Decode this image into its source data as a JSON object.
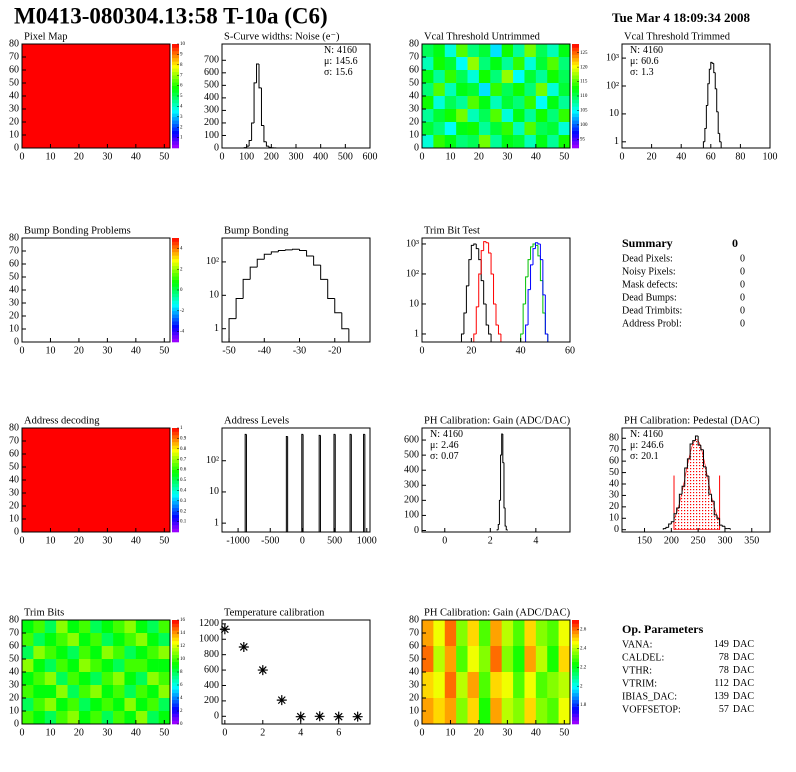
{
  "header": {
    "title": "M0413-080304.13:58 T-10a (C6)",
    "date": "Tue Mar 4 18:09:34 2008"
  },
  "chart_data": [
    {
      "type": "heatmap",
      "title": "Pixel Map",
      "xlim": [
        0,
        52
      ],
      "ylim": [
        0,
        80
      ],
      "xticks": [
        0,
        10,
        20,
        30,
        40,
        50
      ],
      "yticks": [
        0,
        10,
        20,
        30,
        40,
        50,
        60,
        70,
        80
      ],
      "zlim": [
        0,
        10
      ],
      "zticks": [
        1,
        2,
        3,
        4,
        5,
        6,
        7,
        8,
        9,
        10
      ],
      "z": [
        [
          10
        ]
      ]
    },
    {
      "type": "histogram",
      "title": "S-Curve widths: Noise (e⁻)",
      "xlim": [
        0,
        600
      ],
      "ylim": [
        0,
        830
      ],
      "xticks": [
        0,
        100,
        200,
        300,
        400,
        500,
        600
      ],
      "yticks": [
        0,
        100,
        200,
        300,
        400,
        500,
        600,
        700
      ],
      "color": "#000000",
      "bins": [
        90,
        100,
        110,
        120,
        130,
        140,
        150,
        160,
        170,
        180,
        190,
        200,
        210,
        220
      ],
      "values": [
        3,
        15,
        60,
        200,
        520,
        670,
        480,
        180,
        50,
        15,
        5,
        2,
        1
      ],
      "stats": [
        {
          "name": "N:",
          "value": 4160
        },
        {
          "name": "μ:",
          "value": 145.6
        },
        {
          "name": "σ:",
          "value": 15.6
        }
      ],
      "stats_corner": "upper right"
    },
    {
      "type": "heatmap",
      "title": "Vcal Threshold Untrimmed",
      "xlim": [
        0,
        52
      ],
      "ylim": [
        0,
        80
      ],
      "xticks": [
        0,
        10,
        20,
        30,
        40,
        50
      ],
      "yticks": [
        0,
        10,
        20,
        30,
        40,
        50,
        60,
        70,
        80
      ],
      "zlim": [
        92,
        128
      ],
      "zticks": [
        95,
        100,
        105,
        110,
        115,
        120,
        125
      ],
      "z": [
        [
          110,
          112,
          106,
          115,
          109,
          111,
          104,
          113,
          108,
          116,
          110,
          107,
          112
        ],
        [
          107,
          113,
          111,
          105,
          117,
          109,
          112,
          108,
          114,
          106,
          111,
          115,
          109
        ],
        [
          112,
          108,
          114,
          110,
          106,
          113,
          109,
          117,
          105,
          111,
          108,
          113,
          110
        ],
        [
          109,
          115,
          107,
          112,
          111,
          104,
          114,
          110,
          113,
          109,
          116,
          106,
          111
        ],
        [
          113,
          106,
          110,
          108,
          115,
          112,
          107,
          111,
          109,
          114,
          105,
          112,
          108
        ],
        [
          108,
          111,
          113,
          116,
          107,
          110,
          115,
          106,
          112,
          108,
          113,
          109,
          114
        ],
        [
          111,
          109,
          105,
          112,
          113,
          108,
          111,
          114,
          107,
          115,
          110,
          111,
          106
        ],
        [
          106,
          114,
          112,
          109,
          110,
          116,
          108,
          112,
          111,
          107,
          112,
          108,
          113
        ]
      ]
    },
    {
      "type": "histogram",
      "title": "Vcal Threshold Trimmed",
      "log_y": true,
      "xlim": [
        0,
        100
      ],
      "ylim": [
        0.6,
        3200
      ],
      "xticks": [
        0,
        20,
        40,
        60,
        80,
        100
      ],
      "yticks": [
        1,
        10,
        {
          "value": 100,
          "label": "10²"
        },
        {
          "value": 1000,
          "label": "10³"
        }
      ],
      "color": "#000000",
      "bins": [
        55,
        56,
        57,
        58,
        59,
        60,
        61,
        62,
        63,
        64,
        65,
        66,
        67
      ],
      "values": [
        1,
        3,
        20,
        120,
        400,
        700,
        650,
        300,
        80,
        12,
        2,
        1
      ],
      "stats": [
        {
          "name": "N:",
          "value": 4160
        },
        {
          "name": "μ:",
          "value": 60.6
        },
        {
          "name": "σ:",
          "value": 1.3
        }
      ],
      "stats_corner": "upper left"
    },
    {
      "type": "heatmap",
      "title": "Bump Bonding Problems",
      "xlim": [
        0,
        52
      ],
      "ylim": [
        0,
        80
      ],
      "xticks": [
        0,
        10,
        20,
        30,
        40,
        50
      ],
      "yticks": [
        0,
        10,
        20,
        30,
        40,
        50,
        60,
        70,
        80
      ],
      "zlim": [
        -5,
        5
      ],
      "zticks": [
        -4,
        -2,
        0,
        2,
        4
      ]
    },
    {
      "type": "histogram",
      "title": "Bump Bonding",
      "log_y": true,
      "xlim": [
        -52,
        -10
      ],
      "ylim": [
        0.4,
        520
      ],
      "xticks": [
        -50,
        -40,
        -30,
        -20
      ],
      "yticks": [
        1,
        10,
        {
          "value": 100,
          "label": "10²"
        }
      ],
      "color": "#000000",
      "bins": [
        -50,
        -48,
        -46,
        -44,
        -42,
        -40,
        -38,
        -36,
        -34,
        -32,
        -30,
        -28,
        -26,
        -24,
        -22,
        -20,
        -18,
        -16
      ],
      "values": [
        2,
        8,
        30,
        70,
        120,
        170,
        200,
        220,
        230,
        240,
        220,
        150,
        80,
        30,
        8,
        3,
        1
      ]
    },
    {
      "type": "histogram",
      "title": "Trim Bit Test",
      "log_y": true,
      "xlim": [
        0,
        60
      ],
      "ylim": [
        0.54,
        1580
      ],
      "xticks": [
        0,
        20,
        40,
        60
      ],
      "yticks": [
        1,
        10,
        {
          "value": 100,
          "label": "10²"
        },
        {
          "value": 1000,
          "label": "10³"
        }
      ],
      "series": [
        {
          "color": "#000000",
          "bins": [
            16,
            17,
            18,
            19,
            20,
            21,
            22,
            23,
            24,
            25,
            26,
            27,
            28
          ],
          "values": [
            1,
            5,
            40,
            300,
            900,
            1000,
            700,
            300,
            60,
            10,
            2,
            1
          ]
        },
        {
          "color": "#ff0000",
          "bins": [
            21,
            22,
            23,
            24,
            25,
            26,
            27,
            28,
            29,
            30,
            31,
            32
          ],
          "values": [
            1,
            8,
            100,
            600,
            1200,
            1100,
            500,
            100,
            10,
            2,
            1
          ]
        },
        {
          "color": "#00c000",
          "bins": [
            40,
            41,
            42,
            43,
            44,
            45,
            46,
            47,
            48,
            49,
            50,
            51
          ],
          "values": [
            1,
            10,
            80,
            300,
            800,
            1000,
            900,
            400,
            60,
            5,
            1
          ]
        },
        {
          "color": "#0000ff",
          "bins": [
            42,
            43,
            44,
            45,
            46,
            47,
            48,
            49,
            50,
            51
          ],
          "values": [
            2,
            30,
            200,
            700,
            1100,
            1000,
            300,
            20,
            1
          ]
        }
      ]
    },
    {
      "type": "heatmap",
      "title": "Address decoding",
      "xlim": [
        0,
        52
      ],
      "ylim": [
        0,
        80
      ],
      "xticks": [
        0,
        10,
        20,
        30,
        40,
        50
      ],
      "yticks": [
        0,
        10,
        20,
        30,
        40,
        50,
        60,
        70,
        80
      ],
      "zlim": [
        0,
        1
      ],
      "zticks": [
        0.1,
        0.2,
        0.3,
        0.4,
        0.5,
        0.6,
        0.7,
        0.8,
        0.9,
        1
      ],
      "z": [
        [
          1
        ]
      ]
    },
    {
      "type": "histogram",
      "title": "Address Levels",
      "log_y": true,
      "xlim": [
        -1250,
        1050
      ],
      "ylim": [
        0.52,
        1120
      ],
      "xticks": [
        -1000,
        -500,
        0,
        500,
        1000
      ],
      "yticks": [
        1,
        10,
        {
          "value": 100,
          "label": "10²"
        }
      ],
      "color": "#000000",
      "bins": [
        -890,
        -870,
        -250,
        -230,
        -10,
        10,
        260,
        280,
        490,
        510,
        740,
        760,
        950,
        970
      ],
      "values": [
        700,
        0,
        600,
        0,
        700,
        0,
        650,
        0,
        700,
        0,
        700,
        0,
        700
      ]
    },
    {
      "type": "histogram",
      "title": "PH Calibration: Gain (ADC/DAC)",
      "xlim": [
        -1,
        5.5
      ],
      "ylim": [
        -10,
        680
      ],
      "xticks": [
        0,
        2,
        4
      ],
      "yticks": [
        0,
        100,
        200,
        300,
        400,
        500,
        600
      ],
      "color": "#000000",
      "bins": [
        2.3,
        2.35,
        2.4,
        2.45,
        2.5,
        2.55,
        2.6,
        2.65,
        2.7,
        2.75
      ],
      "values": [
        5,
        40,
        200,
        500,
        640,
        450,
        150,
        30,
        5
      ],
      "stats": [
        {
          "name": "N:",
          "value": 4160
        },
        {
          "name": "μ:",
          "value": 2.46
        },
        {
          "name": "σ:",
          "value": 0.07
        }
      ],
      "stats_corner": "upper left"
    },
    {
      "type": "histogram",
      "title": "PH Calibration: Pedestal (DAC)",
      "xlim": [
        108,
        384
      ],
      "ylim": [
        -2,
        89
      ],
      "xticks": [
        150,
        200,
        250,
        300,
        350
      ],
      "yticks": [
        0,
        10,
        20,
        30,
        40,
        50,
        60,
        70,
        80
      ],
      "color": "#000000",
      "bins": [
        185,
        190,
        195,
        200,
        205,
        210,
        215,
        220,
        225,
        230,
        235,
        240,
        245,
        250,
        255,
        260,
        265,
        270,
        275,
        280,
        285,
        290,
        295,
        300,
        305,
        310
      ],
      "values": [
        1,
        2,
        5,
        7,
        14,
        19,
        31,
        38,
        54,
        62,
        75,
        78,
        82,
        74,
        70,
        55,
        47,
        31,
        25,
        13,
        10,
        4,
        3,
        1,
        1
      ],
      "fit": {
        "color": "#ff0000",
        "amplitude": 79,
        "range": [
          205,
          290
        ]
      },
      "stats": [
        {
          "name": "N:",
          "value": 4160
        },
        {
          "name": "μ:",
          "value": 246.6,
          "color": "#ff0000"
        },
        {
          "name": "σ:",
          "value": 20.1,
          "color": "#ff0000"
        }
      ],
      "stats_corner": "upper left"
    },
    {
      "type": "heatmap",
      "title": "Trim Bits",
      "xlim": [
        0,
        52
      ],
      "ylim": [
        0,
        80
      ],
      "xticks": [
        0,
        10,
        20,
        30,
        40,
        50
      ],
      "yticks": [
        0,
        10,
        20,
        30,
        40,
        50,
        60,
        70,
        80
      ],
      "zlim": [
        0,
        16
      ],
      "zticks": [
        0,
        2,
        4,
        6,
        8,
        10,
        12,
        14,
        16
      ],
      "z": [
        [
          9,
          10,
          8,
          11,
          9,
          10,
          8,
          9,
          10,
          11,
          9,
          8,
          10
        ],
        [
          10,
          8,
          9,
          10,
          11,
          9,
          10,
          8,
          9,
          10,
          11,
          9,
          8
        ],
        [
          8,
          11,
          10,
          9,
          8,
          10,
          9,
          11,
          10,
          8,
          9,
          10,
          11
        ],
        [
          11,
          9,
          8,
          10,
          9,
          11,
          10,
          9,
          8,
          10,
          10,
          9,
          9
        ],
        [
          9,
          10,
          11,
          8,
          10,
          9,
          8,
          10,
          11,
          9,
          8,
          11,
          10
        ],
        [
          10,
          9,
          9,
          11,
          8,
          10,
          11,
          9,
          10,
          8,
          10,
          9,
          11
        ],
        [
          8,
          10,
          11,
          9,
          10,
          8,
          9,
          10,
          9,
          11,
          9,
          10,
          8
        ],
        [
          10,
          9,
          8,
          10,
          11,
          9,
          10,
          8,
          10,
          9,
          11,
          8,
          9
        ]
      ]
    },
    {
      "type": "scatter",
      "title": "Temperature calibration",
      "marker": "star",
      "color": "#000000",
      "xlim": [
        -0.15,
        7.65
      ],
      "ylim": [
        -100,
        1250
      ],
      "xticks": [
        0,
        2,
        4,
        6
      ],
      "yticks": [
        0,
        200,
        400,
        600,
        800,
        1000,
        1200
      ],
      "x": [
        0,
        1,
        2,
        3,
        4,
        5,
        6,
        7
      ],
      "values": [
        1130,
        900,
        600,
        210,
        -5,
        0,
        -5,
        -5
      ]
    },
    {
      "type": "heatmap",
      "title": "PH Calibration: Gain (ADC/DAC)",
      "xlim": [
        0,
        52
      ],
      "ylim": [
        0,
        80
      ],
      "xticks": [
        0,
        10,
        20,
        30,
        40,
        50
      ],
      "yticks": [
        0,
        10,
        20,
        30,
        40,
        50,
        60,
        70,
        80
      ],
      "zlim": [
        1.6,
        2.7
      ],
      "zticks": [
        1.8,
        2,
        2.2,
        2.4,
        2.6
      ],
      "z": [
        [
          2.55,
          2.45,
          2.6,
          2.35,
          2.5,
          2.3,
          2.55,
          2.4,
          2.3,
          2.5,
          2.35,
          2.3,
          2.45
        ],
        [
          2.6,
          2.4,
          2.55,
          2.3,
          2.45,
          2.35,
          2.6,
          2.35,
          2.25,
          2.55,
          2.4,
          2.25,
          2.5
        ],
        [
          2.5,
          2.45,
          2.6,
          2.4,
          2.55,
          2.3,
          2.5,
          2.45,
          2.3,
          2.45,
          2.3,
          2.35,
          2.4
        ],
        [
          2.55,
          2.5,
          2.55,
          2.35,
          2.5,
          2.25,
          2.55,
          2.4,
          2.35,
          2.5,
          2.35,
          2.3,
          2.45
        ]
      ]
    }
  ],
  "summary": {
    "title": "Summary",
    "total": 0,
    "rows": [
      {
        "label": "Dead Pixels:",
        "value": 0
      },
      {
        "label": "Noisy Pixels:",
        "value": 0
      },
      {
        "label": "Mask defects:",
        "value": 0
      },
      {
        "label": "Dead Bumps:",
        "value": 0
      },
      {
        "label": "Dead Trimbits:",
        "value": 0
      },
      {
        "label": "Address Probl:",
        "value": 0
      }
    ]
  },
  "op_parameters": {
    "title": "Op. Parameters",
    "rows": [
      {
        "name": "VANA:",
        "value": 149,
        "unit": "DAC"
      },
      {
        "name": "CALDEL:",
        "value": 78,
        "unit": "DAC"
      },
      {
        "name": "VTHR:",
        "value": 78,
        "unit": "DAC"
      },
      {
        "name": "VTRIM:",
        "value": 112,
        "unit": "DAC"
      },
      {
        "name": "IBIAS_DAC:",
        "value": 139,
        "unit": "DAC"
      },
      {
        "name": "VOFFSETOP:",
        "value": 57,
        "unit": "DAC"
      }
    ]
  }
}
